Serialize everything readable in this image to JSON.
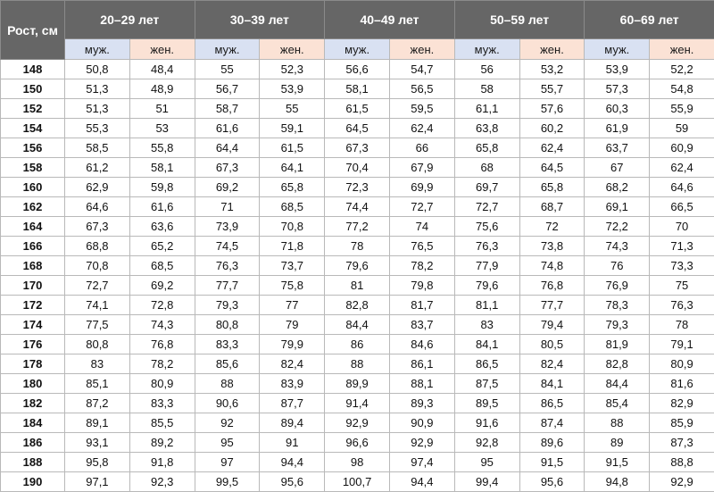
{
  "table": {
    "corner_label": "Рост, см",
    "age_groups": [
      "20–29 лет",
      "30–39 лет",
      "40–49 лет",
      "50–59 лет",
      "60–69 лет"
    ],
    "sex_labels": {
      "male": "муж.",
      "female": "жен."
    },
    "colors": {
      "header_dark": "#666666",
      "corner": "#8c8c8c",
      "male_bg": "#d9e1f2",
      "female_bg": "#fbe2d5",
      "grid": "#b9b9b9"
    },
    "rows": [
      {
        "height": "148",
        "values": [
          "50,8",
          "48,4",
          "55",
          "52,3",
          "56,6",
          "54,7",
          "56",
          "53,2",
          "53,9",
          "52,2"
        ]
      },
      {
        "height": "150",
        "values": [
          "51,3",
          "48,9",
          "56,7",
          "53,9",
          "58,1",
          "56,5",
          "58",
          "55,7",
          "57,3",
          "54,8"
        ]
      },
      {
        "height": "152",
        "values": [
          "51,3",
          "51",
          "58,7",
          "55",
          "61,5",
          "59,5",
          "61,1",
          "57,6",
          "60,3",
          "55,9"
        ]
      },
      {
        "height": "154",
        "values": [
          "55,3",
          "53",
          "61,6",
          "59,1",
          "64,5",
          "62,4",
          "63,8",
          "60,2",
          "61,9",
          "59"
        ]
      },
      {
        "height": "156",
        "values": [
          "58,5",
          "55,8",
          "64,4",
          "61,5",
          "67,3",
          "66",
          "65,8",
          "62,4",
          "63,7",
          "60,9"
        ]
      },
      {
        "height": "158",
        "values": [
          "61,2",
          "58,1",
          "67,3",
          "64,1",
          "70,4",
          "67,9",
          "68",
          "64,5",
          "67",
          "62,4"
        ]
      },
      {
        "height": "160",
        "values": [
          "62,9",
          "59,8",
          "69,2",
          "65,8",
          "72,3",
          "69,9",
          "69,7",
          "65,8",
          "68,2",
          "64,6"
        ]
      },
      {
        "height": "162",
        "values": [
          "64,6",
          "61,6",
          "71",
          "68,5",
          "74,4",
          "72,7",
          "72,7",
          "68,7",
          "69,1",
          "66,5"
        ]
      },
      {
        "height": "164",
        "values": [
          "67,3",
          "63,6",
          "73,9",
          "70,8",
          "77,2",
          "74",
          "75,6",
          "72",
          "72,2",
          "70"
        ]
      },
      {
        "height": "166",
        "values": [
          "68,8",
          "65,2",
          "74,5",
          "71,8",
          "78",
          "76,5",
          "76,3",
          "73,8",
          "74,3",
          "71,3"
        ]
      },
      {
        "height": "168",
        "values": [
          "70,8",
          "68,5",
          "76,3",
          "73,7",
          "79,6",
          "78,2",
          "77,9",
          "74,8",
          "76",
          "73,3"
        ]
      },
      {
        "height": "170",
        "values": [
          "72,7",
          "69,2",
          "77,7",
          "75,8",
          "81",
          "79,8",
          "79,6",
          "76,8",
          "76,9",
          "75"
        ]
      },
      {
        "height": "172",
        "values": [
          "74,1",
          "72,8",
          "79,3",
          "77",
          "82,8",
          "81,7",
          "81,1",
          "77,7",
          "78,3",
          "76,3"
        ]
      },
      {
        "height": "174",
        "values": [
          "77,5",
          "74,3",
          "80,8",
          "79",
          "84,4",
          "83,7",
          "83",
          "79,4",
          "79,3",
          "78"
        ]
      },
      {
        "height": "176",
        "values": [
          "80,8",
          "76,8",
          "83,3",
          "79,9",
          "86",
          "84,6",
          "84,1",
          "80,5",
          "81,9",
          "79,1"
        ]
      },
      {
        "height": "178",
        "values": [
          "83",
          "78,2",
          "85,6",
          "82,4",
          "88",
          "86,1",
          "86,5",
          "82,4",
          "82,8",
          "80,9"
        ]
      },
      {
        "height": "180",
        "values": [
          "85,1",
          "80,9",
          "88",
          "83,9",
          "89,9",
          "88,1",
          "87,5",
          "84,1",
          "84,4",
          "81,6"
        ]
      },
      {
        "height": "182",
        "values": [
          "87,2",
          "83,3",
          "90,6",
          "87,7",
          "91,4",
          "89,3",
          "89,5",
          "86,5",
          "85,4",
          "82,9"
        ]
      },
      {
        "height": "184",
        "values": [
          "89,1",
          "85,5",
          "92",
          "89,4",
          "92,9",
          "90,9",
          "91,6",
          "87,4",
          "88",
          "85,9"
        ]
      },
      {
        "height": "186",
        "values": [
          "93,1",
          "89,2",
          "95",
          "91",
          "96,6",
          "92,9",
          "92,8",
          "89,6",
          "89",
          "87,3"
        ]
      },
      {
        "height": "188",
        "values": [
          "95,8",
          "91,8",
          "97",
          "94,4",
          "98",
          "97,4",
          "95",
          "91,5",
          "91,5",
          "88,8"
        ]
      },
      {
        "height": "190",
        "values": [
          "97,1",
          "92,3",
          "99,5",
          "95,6",
          "100,7",
          "94,4",
          "99,4",
          "95,6",
          "94,8",
          "92,9"
        ]
      }
    ]
  }
}
